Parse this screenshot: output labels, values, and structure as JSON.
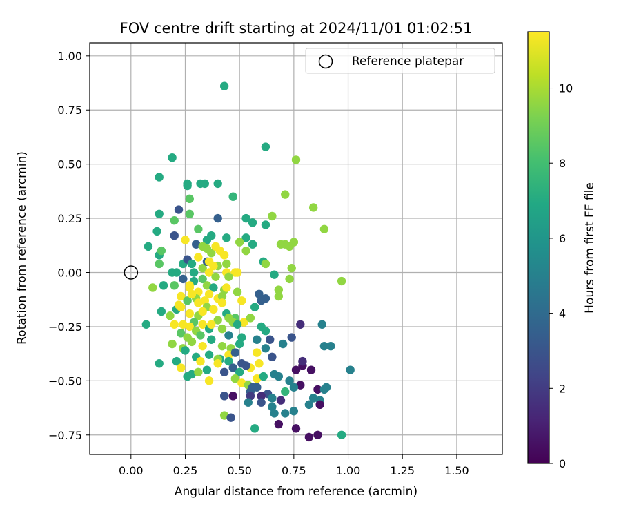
{
  "chart_data": {
    "type": "scatter",
    "title": "FOV centre drift starting at 2024/11/01 01:02:51",
    "xlabel": "Angular distance from reference (arcmin)",
    "ylabel": "Rotation from reference (arcmin)",
    "xlim": [
      -0.19,
      1.71
    ],
    "ylim": [
      -0.84,
      1.06
    ],
    "xticks": [
      0.0,
      0.25,
      0.5,
      0.75,
      1.0,
      1.25,
      1.5
    ],
    "xtick_labels": [
      "0.00",
      "0.25",
      "0.50",
      "0.75",
      "1.00",
      "1.25",
      "1.50"
    ],
    "yticks": [
      -0.75,
      -0.5,
      -0.25,
      0.0,
      0.25,
      0.5,
      0.75,
      1.0
    ],
    "ytick_labels": [
      "−0.75",
      "−0.50",
      "−0.25",
      "0.00",
      "0.25",
      "0.50",
      "0.75",
      "1.00"
    ],
    "grid": true,
    "legend": {
      "position": "top-right",
      "entries": [
        {
          "label": "Reference platepar",
          "marker": "open-circle"
        }
      ]
    },
    "reference_point": {
      "x": 0.0,
      "y": 0.0
    },
    "colorbar": {
      "label": "Hours from first FF file",
      "colormap": "viridis",
      "range": [
        0,
        11.5
      ],
      "ticks": [
        0,
        2,
        4,
        6,
        8,
        10
      ],
      "tick_labels": [
        "0",
        "2",
        "4",
        "6",
        "8",
        "10"
      ]
    },
    "series": [
      {
        "points": [
          [
            0.43,
            0.86,
            7.0
          ],
          [
            0.62,
            0.58,
            7.0
          ],
          [
            0.19,
            0.53,
            7.0
          ],
          [
            0.76,
            0.52,
            9.6
          ],
          [
            0.13,
            0.44,
            7.0
          ],
          [
            0.26,
            0.41,
            7.0
          ],
          [
            0.32,
            0.41,
            7.0
          ],
          [
            0.34,
            0.41,
            7.0
          ],
          [
            0.4,
            0.41,
            7.0
          ],
          [
            0.26,
            0.4,
            7.0
          ],
          [
            0.47,
            0.35,
            7.5
          ],
          [
            0.71,
            0.36,
            9.6
          ],
          [
            0.27,
            0.34,
            8.5
          ],
          [
            0.84,
            0.3,
            9.6
          ],
          [
            0.22,
            0.29,
            3.0
          ],
          [
            0.13,
            0.27,
            7.0
          ],
          [
            0.27,
            0.27,
            8.5
          ],
          [
            0.65,
            0.26,
            9.6
          ],
          [
            0.4,
            0.25,
            3.5
          ],
          [
            0.53,
            0.25,
            7.0
          ],
          [
            0.56,
            0.23,
            7.0
          ],
          [
            0.62,
            0.22,
            7.0
          ],
          [
            0.12,
            0.19,
            7.0
          ],
          [
            0.31,
            0.2,
            8.5
          ],
          [
            0.89,
            0.2,
            9.6
          ],
          [
            0.2,
            0.24,
            8.5
          ],
          [
            0.35,
            0.15,
            7.0
          ],
          [
            0.37,
            0.17,
            7.0
          ],
          [
            0.2,
            0.17,
            3.0
          ],
          [
            0.44,
            0.16,
            7.0
          ],
          [
            0.53,
            0.16,
            7.0
          ],
          [
            0.75,
            0.14,
            9.6
          ],
          [
            0.69,
            0.13,
            9.6
          ],
          [
            0.71,
            0.13,
            9.6
          ],
          [
            0.73,
            0.12,
            9.6
          ],
          [
            0.08,
            0.12,
            7.0
          ],
          [
            0.5,
            0.14,
            9.6
          ],
          [
            0.56,
            0.13,
            7.0
          ],
          [
            0.3,
            0.13,
            3.5
          ],
          [
            0.13,
            0.08,
            7.0
          ],
          [
            0.14,
            0.1,
            8.5
          ],
          [
            0.33,
            0.12,
            9.6
          ],
          [
            0.35,
            0.11,
            9.6
          ],
          [
            0.53,
            0.1,
            9.6
          ],
          [
            0.41,
            0.1,
            11.4
          ],
          [
            0.43,
            0.08,
            11.4
          ],
          [
            0.37,
            0.09,
            9.6
          ],
          [
            0.24,
            0.04,
            7.0
          ],
          [
            0.26,
            0.06,
            3.0
          ],
          [
            0.28,
            0.04,
            7.0
          ],
          [
            0.13,
            0.04,
            8.5
          ],
          [
            0.33,
            0.02,
            9.6
          ],
          [
            0.4,
            0.03,
            9.6
          ],
          [
            0.44,
            0.04,
            9.6
          ],
          [
            0.61,
            0.05,
            7.0
          ],
          [
            0.62,
            0.04,
            9.6
          ],
          [
            0.74,
            0.02,
            9.6
          ],
          [
            0.35,
            0.05,
            3.5
          ],
          [
            0.38,
            0.03,
            11.4
          ],
          [
            0.31,
            0.07,
            11.4
          ],
          [
            0.19,
            0.0,
            7.0
          ],
          [
            0.21,
            0.0,
            7.0
          ],
          [
            0.29,
            0.0,
            7.0
          ],
          [
            0.36,
            0.0,
            11.4
          ],
          [
            0.44,
            0.0,
            11.4
          ],
          [
            0.48,
            0.0,
            11.4
          ],
          [
            0.49,
            0.0,
            11.4
          ],
          [
            0.66,
            -0.01,
            7.0
          ],
          [
            0.73,
            -0.03,
            9.6
          ],
          [
            0.97,
            -0.04,
            9.6
          ],
          [
            0.2,
            -0.06,
            8.5
          ],
          [
            0.24,
            -0.03,
            3.5
          ],
          [
            0.29,
            -0.04,
            7.0
          ],
          [
            0.33,
            -0.03,
            8.5
          ],
          [
            0.39,
            -0.02,
            9.6
          ],
          [
            0.45,
            -0.02,
            9.6
          ],
          [
            0.1,
            -0.07,
            9.6
          ],
          [
            0.15,
            -0.06,
            7.0
          ],
          [
            0.27,
            -0.07,
            11.4
          ],
          [
            0.35,
            -0.06,
            9.6
          ],
          [
            0.38,
            -0.07,
            7.0
          ],
          [
            0.43,
            -0.08,
            9.6
          ],
          [
            0.44,
            -0.07,
            11.4
          ],
          [
            0.31,
            -0.09,
            11.4
          ],
          [
            0.49,
            -0.09,
            9.6
          ],
          [
            0.59,
            -0.1,
            3.5
          ],
          [
            0.68,
            -0.08,
            9.6
          ],
          [
            0.68,
            -0.11,
            9.6
          ],
          [
            0.23,
            -0.11,
            11.4
          ],
          [
            0.26,
            -0.13,
            8.5
          ],
          [
            0.3,
            -0.12,
            9.6
          ],
          [
            0.34,
            -0.13,
            11.4
          ],
          [
            0.36,
            -0.1,
            11.4
          ],
          [
            0.4,
            -0.12,
            11.4
          ],
          [
            0.42,
            -0.11,
            9.6
          ],
          [
            0.51,
            -0.13,
            11.4
          ],
          [
            0.6,
            -0.13,
            3.5
          ],
          [
            0.62,
            -0.12,
            3.5
          ],
          [
            0.57,
            -0.16,
            7.0
          ],
          [
            0.21,
            -0.17,
            7.0
          ],
          [
            0.14,
            -0.18,
            7.0
          ],
          [
            0.18,
            -0.2,
            9.6
          ],
          [
            0.23,
            -0.16,
            11.4
          ],
          [
            0.27,
            -0.19,
            11.4
          ],
          [
            0.31,
            -0.2,
            9.6
          ],
          [
            0.35,
            -0.16,
            9.6
          ],
          [
            0.38,
            -0.17,
            11.4
          ],
          [
            0.44,
            -0.19,
            7.0
          ],
          [
            0.48,
            -0.21,
            8.5
          ],
          [
            0.29,
            -0.23,
            8.5
          ],
          [
            0.33,
            -0.24,
            11.4
          ],
          [
            0.4,
            -0.22,
            9.6
          ],
          [
            0.45,
            -0.21,
            9.6
          ],
          [
            0.47,
            -0.23,
            9.6
          ],
          [
            0.52,
            -0.23,
            11.4
          ],
          [
            0.55,
            -0.21,
            9.6
          ],
          [
            0.2,
            -0.24,
            11.4
          ],
          [
            0.24,
            -0.24,
            11.4
          ],
          [
            0.27,
            -0.25,
            11.4
          ],
          [
            0.3,
            -0.27,
            9.6
          ],
          [
            0.36,
            -0.26,
            7.0
          ],
          [
            0.42,
            -0.26,
            9.6
          ],
          [
            0.49,
            -0.24,
            7.0
          ],
          [
            0.6,
            -0.25,
            7.0
          ],
          [
            0.62,
            -0.27,
            7.0
          ],
          [
            0.07,
            -0.24,
            7.0
          ],
          [
            0.78,
            -0.24,
            1.5
          ],
          [
            0.88,
            -0.24,
            5.0
          ],
          [
            0.23,
            -0.28,
            8.5
          ],
          [
            0.26,
            -0.3,
            9.6
          ],
          [
            0.32,
            -0.29,
            8.5
          ],
          [
            0.37,
            -0.31,
            7.0
          ],
          [
            0.45,
            -0.29,
            5.0
          ],
          [
            0.51,
            -0.3,
            7.0
          ],
          [
            0.58,
            -0.31,
            5.0
          ],
          [
            0.64,
            -0.31,
            3.0
          ],
          [
            0.7,
            -0.33,
            5.0
          ],
          [
            0.74,
            -0.3,
            3.0
          ],
          [
            0.19,
            -0.33,
            9.6
          ],
          [
            0.24,
            -0.35,
            9.6
          ],
          [
            0.28,
            -0.32,
            9.6
          ],
          [
            0.33,
            -0.34,
            11.4
          ],
          [
            0.42,
            -0.34,
            9.6
          ],
          [
            0.46,
            -0.35,
            9.6
          ],
          [
            0.5,
            -0.33,
            7.0
          ],
          [
            0.62,
            -0.35,
            5.0
          ],
          [
            0.89,
            -0.34,
            5.0
          ],
          [
            0.92,
            -0.34,
            5.0
          ],
          [
            0.25,
            -0.36,
            7.0
          ],
          [
            0.3,
            -0.39,
            7.0
          ],
          [
            0.36,
            -0.38,
            7.0
          ],
          [
            0.41,
            -0.4,
            7.0
          ],
          [
            0.45,
            -0.38,
            11.4
          ],
          [
            0.48,
            -0.37,
            3.5
          ],
          [
            0.58,
            -0.37,
            11.4
          ],
          [
            0.65,
            -0.39,
            3.0
          ],
          [
            0.13,
            -0.42,
            7.0
          ],
          [
            0.21,
            -0.41,
            7.0
          ],
          [
            0.32,
            -0.41,
            11.4
          ],
          [
            0.4,
            -0.4,
            9.6
          ],
          [
            0.45,
            -0.41,
            7.0
          ],
          [
            0.51,
            -0.42,
            3.0
          ],
          [
            0.55,
            -0.44,
            11.4
          ],
          [
            0.59,
            -0.42,
            11.4
          ],
          [
            0.23,
            -0.44,
            11.4
          ],
          [
            0.28,
            -0.47,
            7.0
          ],
          [
            0.31,
            -0.46,
            9.6
          ],
          [
            0.35,
            -0.45,
            7.0
          ],
          [
            0.43,
            -0.46,
            3.0
          ],
          [
            0.47,
            -0.44,
            3.5
          ],
          [
            0.5,
            -0.46,
            7.0
          ],
          [
            0.53,
            -0.43,
            3.0
          ],
          [
            0.76,
            -0.45,
            0.5
          ],
          [
            0.79,
            -0.43,
            0.5
          ],
          [
            0.83,
            -0.45,
            0.5
          ],
          [
            0.79,
            -0.41,
            1.5
          ],
          [
            1.01,
            -0.45,
            5.0
          ],
          [
            0.26,
            -0.48,
            7.0
          ],
          [
            0.36,
            -0.5,
            11.4
          ],
          [
            0.48,
            -0.49,
            9.6
          ],
          [
            0.51,
            -0.51,
            11.4
          ],
          [
            0.54,
            -0.52,
            9.6
          ],
          [
            0.56,
            -0.53,
            3.5
          ],
          [
            0.58,
            -0.49,
            11.4
          ],
          [
            0.61,
            -0.48,
            7.0
          ],
          [
            0.66,
            -0.47,
            5.0
          ],
          [
            0.68,
            -0.48,
            5.0
          ],
          [
            0.73,
            -0.5,
            5.0
          ],
          [
            0.78,
            -0.52,
            0.5
          ],
          [
            0.47,
            -0.57,
            0.5
          ],
          [
            0.43,
            -0.57,
            3.0
          ],
          [
            0.55,
            -0.55,
            3.5
          ],
          [
            0.58,
            -0.53,
            3.5
          ],
          [
            0.63,
            -0.56,
            3.0
          ],
          [
            0.71,
            -0.55,
            7.5
          ],
          [
            0.75,
            -0.53,
            5.0
          ],
          [
            0.86,
            -0.54,
            0.5
          ],
          [
            0.89,
            -0.54,
            5.0
          ],
          [
            0.9,
            -0.53,
            5.0
          ],
          [
            0.55,
            -0.57,
            2.0
          ],
          [
            0.6,
            -0.57,
            1.5
          ],
          [
            0.65,
            -0.58,
            5.0
          ],
          [
            0.69,
            -0.59,
            1.5
          ],
          [
            0.84,
            -0.58,
            5.0
          ],
          [
            0.87,
            -0.59,
            5.0
          ],
          [
            0.54,
            -0.6,
            5.0
          ],
          [
            0.6,
            -0.6,
            3.0
          ],
          [
            0.65,
            -0.62,
            5.0
          ],
          [
            0.82,
            -0.61,
            5.0
          ],
          [
            0.87,
            -0.61,
            0.5
          ],
          [
            0.66,
            -0.65,
            5.0
          ],
          [
            0.71,
            -0.65,
            5.0
          ],
          [
            0.75,
            -0.64,
            5.0
          ],
          [
            0.43,
            -0.66,
            9.6
          ],
          [
            0.46,
            -0.67,
            3.0
          ],
          [
            0.57,
            -0.72,
            7.0
          ],
          [
            0.68,
            -0.7,
            0.5
          ],
          [
            0.76,
            -0.72,
            0.5
          ],
          [
            0.82,
            -0.76,
            0.5
          ],
          [
            0.86,
            -0.75,
            0.5
          ],
          [
            0.97,
            -0.75,
            7.0
          ],
          [
            0.27,
            -0.06,
            11.4
          ],
          [
            0.33,
            -0.18,
            11.4
          ],
          [
            0.22,
            -0.15,
            11.4
          ],
          [
            0.28,
            -0.1,
            11.4
          ],
          [
            0.39,
            0.12,
            11.4
          ],
          [
            0.36,
            0.05,
            11.4
          ],
          [
            0.25,
            0.15,
            11.4
          ],
          [
            0.42,
            -0.14,
            11.4
          ],
          [
            0.37,
            -0.24,
            11.4
          ],
          [
            0.4,
            -0.42,
            11.4
          ],
          [
            0.31,
            -0.14,
            11.4
          ]
        ]
      }
    ]
  }
}
